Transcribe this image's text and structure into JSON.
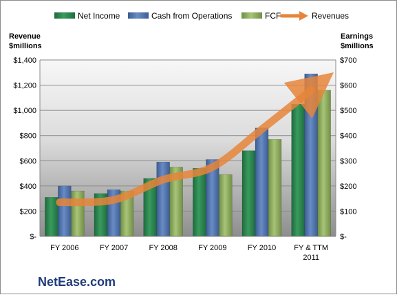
{
  "chart_data": {
    "type": "bar",
    "title": "",
    "categories": [
      "FY 2006",
      "FY 2007",
      "FY 2008",
      "FY 2009",
      "FY 2010",
      "FY & TTM 2011"
    ],
    "series": [
      {
        "name": "Net Income",
        "axis": "right",
        "values": [
          155,
          170,
          230,
          270,
          340,
          525
        ],
        "color": "#2e8a52"
      },
      {
        "name": "Cash from Operations",
        "axis": "right",
        "values": [
          200,
          185,
          295,
          305,
          430,
          645
        ],
        "color": "#4f74ad"
      },
      {
        "name": "FCF",
        "axis": "right",
        "values": [
          180,
          180,
          275,
          245,
          385,
          580
        ],
        "color": "#8fad5e"
      }
    ],
    "line_series": {
      "name": "Revenues",
      "axis": "left",
      "values": [
        270,
        290,
        450,
        550,
        850,
        1160
      ],
      "color": "#e6853a"
    },
    "left_axis": {
      "label_line1": "Revenue",
      "label_line2": "$millions",
      "ylim": [
        0,
        1400
      ],
      "ticks": [
        "$-",
        "$200",
        "$400",
        "$600",
        "$800",
        "$1,000",
        "$1,200",
        "$1,400"
      ]
    },
    "right_axis": {
      "label_line1": "Earnings",
      "label_line2": "$millions",
      "ylim": [
        0,
        700
      ],
      "ticks": [
        "$-",
        "$100",
        "$200",
        "$300",
        "$400",
        "$500",
        "$600",
        "$700"
      ]
    },
    "x_tick_labels": [
      [
        "FY 2006"
      ],
      [
        "FY 2007"
      ],
      [
        "FY 2008"
      ],
      [
        "FY 2009"
      ],
      [
        "FY 2010"
      ],
      [
        "FY & TTM",
        "2011"
      ]
    ],
    "grid": true,
    "legend_position": "top",
    "watermark": "NetEase.com"
  }
}
